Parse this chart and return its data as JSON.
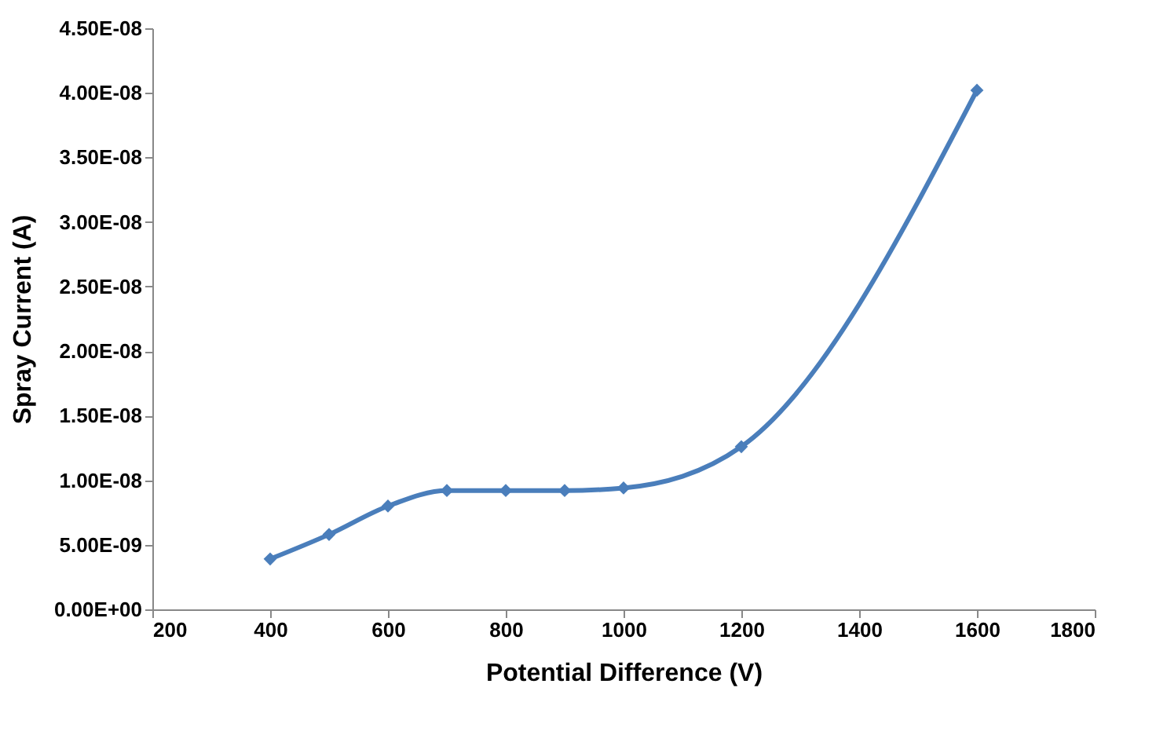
{
  "chart_data": {
    "type": "line",
    "xlabel": "Potential Difference (V)",
    "ylabel": "Spray Current  (A)",
    "x": [
      400,
      500,
      600,
      700,
      800,
      900,
      1000,
      1200,
      1600
    ],
    "series": [
      {
        "color": "#4a7ebb",
        "values": [
          3.9e-09,
          5.8e-09,
          8e-09,
          9.2e-09,
          9.2e-09,
          9.2e-09,
          9.4e-09,
          1.26e-08,
          4.02e-08
        ]
      }
    ],
    "xlim": [
      200,
      1800
    ],
    "xticks": [
      200,
      400,
      600,
      800,
      1000,
      1200,
      1400,
      1600,
      1800
    ],
    "ylim": [
      0,
      4.5e-08
    ],
    "yticks": [
      {
        "value": 0,
        "label": "0.00E+00"
      },
      {
        "value": 5e-09,
        "label": "5.00E-09"
      },
      {
        "value": 1e-08,
        "label": "1.00E-08"
      },
      {
        "value": 1.5e-08,
        "label": "1.50E-08"
      },
      {
        "value": 2e-08,
        "label": "2.00E-08"
      },
      {
        "value": 2.5e-08,
        "label": "2.50E-08"
      },
      {
        "value": 3e-08,
        "label": "3.00E-08"
      },
      {
        "value": 3.5e-08,
        "label": "3.50E-08"
      },
      {
        "value": 4e-08,
        "label": "4.00E-08"
      },
      {
        "value": 4.5e-08,
        "label": "4.50E-08"
      }
    ],
    "grid": false,
    "marker": "diamond",
    "line_style": "solid"
  }
}
